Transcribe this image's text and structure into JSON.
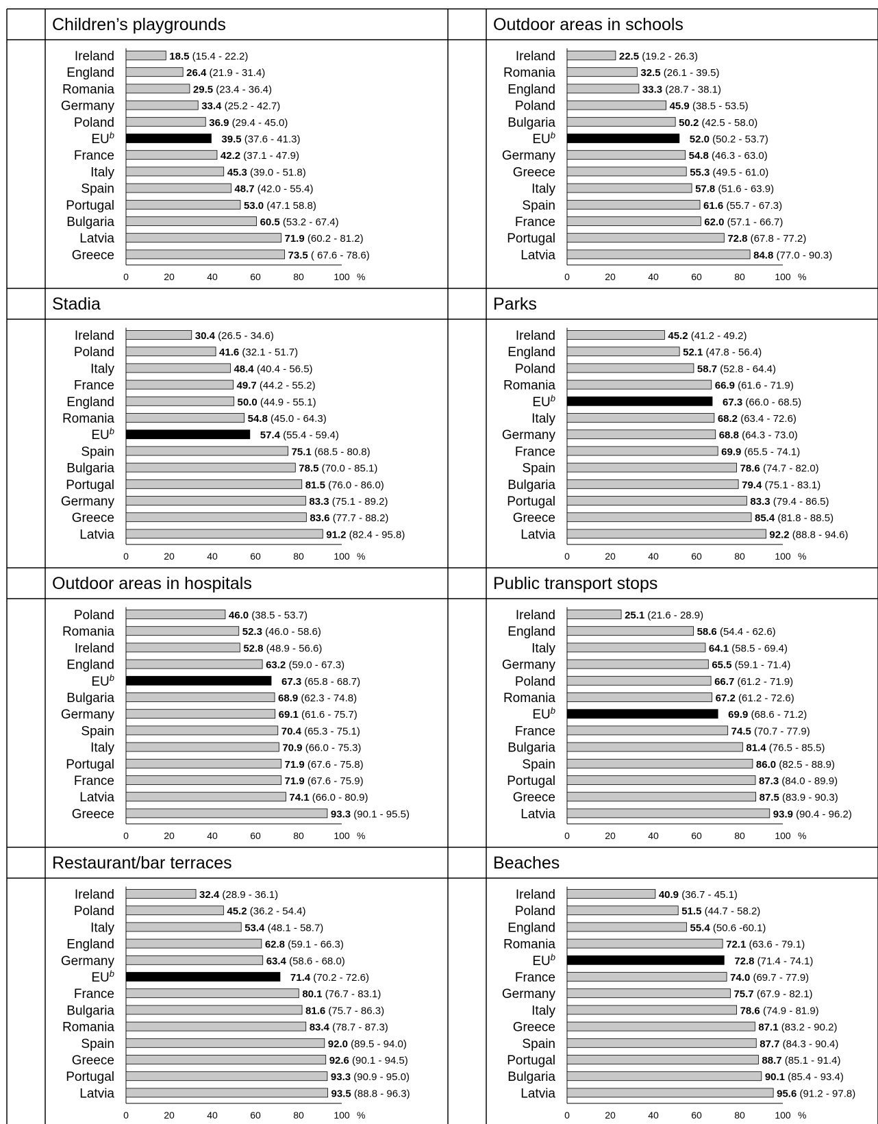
{
  "chart_data": [
    {
      "type": "bar",
      "title": "Children’s playgrounds",
      "categories": [
        "Ireland",
        "England",
        "Romania",
        "Germany",
        "Poland",
        "EU",
        "France",
        "Italy",
        "Spain",
        "Portugal",
        "Bulgaria",
        "Latvia",
        "Greece"
      ],
      "values": [
        18.5,
        26.4,
        29.5,
        33.4,
        36.9,
        39.5,
        42.2,
        45.3,
        48.7,
        53.0,
        60.5,
        71.9,
        73.5
      ],
      "intervals": [
        "(15.4 - 22.2)",
        "(21.9 - 31.4)",
        "(23.4 - 36.4)",
        "(25.2 - 42.7)",
        "(29.4 - 45.0)",
        "(37.6 - 41.3)",
        "(37.1 - 47.9)",
        "(39.0 - 51.8)",
        "(42.0 - 55.4)",
        "(47.1 58.8)",
        "(53.2 - 67.4)",
        "(60.2 - 81.2)",
        "( 67.6 - 78.6)"
      ],
      "highlight": "EU",
      "xlim": [
        0,
        100
      ],
      "xticks": [
        "0",
        "20",
        "40",
        "60",
        "80",
        "100"
      ],
      "unit": "%"
    },
    {
      "type": "bar",
      "title": "Outdoor areas in schools",
      "categories": [
        "Ireland",
        "Romania",
        "England",
        "Poland",
        "Bulgaria",
        "EU",
        "Germany",
        "Greece",
        "Italy",
        "Spain",
        "France",
        "Portugal",
        "Latvia"
      ],
      "values": [
        22.5,
        32.5,
        33.3,
        45.9,
        50.2,
        52.0,
        54.8,
        55.3,
        57.8,
        61.6,
        62.0,
        72.8,
        84.8
      ],
      "intervals": [
        "(19.2 - 26.3)",
        "(26.1 - 39.5)",
        "(28.7 - 38.1)",
        "(38.5 - 53.5)",
        "(42.5 - 58.0)",
        "(50.2 - 53.7)",
        "(46.3 - 63.0)",
        "(49.5 - 61.0)",
        "(51.6 - 63.9)",
        "(55.7 - 67.3)",
        "(57.1 - 66.7)",
        "(67.8 - 77.2)",
        "(77.0 - 90.3)"
      ],
      "highlight": "EU",
      "xlim": [
        0,
        100
      ],
      "xticks": [
        "0",
        "20",
        "40",
        "60",
        "80",
        "100"
      ],
      "unit": "%"
    },
    {
      "type": "bar",
      "title": "Stadia",
      "categories": [
        "Ireland",
        "Poland",
        "Italy",
        "France",
        "England",
        "Romania",
        "EU",
        "Spain",
        "Bulgaria",
        "Portugal",
        "Germany",
        "Greece",
        "Latvia"
      ],
      "values": [
        30.4,
        41.6,
        48.4,
        49.7,
        50.0,
        54.8,
        57.4,
        75.1,
        78.5,
        81.5,
        83.3,
        83.6,
        91.2
      ],
      "intervals": [
        "(26.5 - 34.6)",
        "(32.1 - 51.7)",
        "(40.4 - 56.5)",
        "(44.2 - 55.2)",
        "(44.9 - 55.1)",
        "(45.0 - 64.3)",
        "(55.4 - 59.4)",
        "(68.5 - 80.8)",
        "(70.0 - 85.1)",
        "(76.0 - 86.0)",
        "(75.1 - 89.2)",
        "(77.7 - 88.2)",
        "(82.4 - 95.8)"
      ],
      "highlight": "EU",
      "xlim": [
        0,
        100
      ],
      "xticks": [
        "0",
        "20",
        "40",
        "60",
        "80",
        "100"
      ],
      "unit": "%"
    },
    {
      "type": "bar",
      "title": "Parks",
      "categories": [
        "Ireland",
        "England",
        "Poland",
        "Romania",
        "EU",
        "Italy",
        "Germany",
        "France",
        "Spain",
        "Bulgaria",
        "Portugal",
        "Greece",
        "Latvia"
      ],
      "values": [
        45.2,
        52.1,
        58.7,
        66.9,
        67.3,
        68.2,
        68.8,
        69.9,
        78.6,
        79.4,
        83.3,
        85.4,
        92.2
      ],
      "intervals": [
        "(41.2 - 49.2)",
        "(47.8 - 56.4)",
        "(52.8 - 64.4)",
        "(61.6 - 71.9)",
        "(66.0 - 68.5)",
        "(63.4 - 72.6)",
        "(64.3 - 73.0)",
        "(65.5 - 74.1)",
        "(74.7 - 82.0)",
        "(75.1 - 83.1)",
        "(79.4 - 86.5)",
        "(81.8 - 88.5)",
        "(88.8 - 94.6)"
      ],
      "highlight": "EU",
      "xlim": [
        0,
        100
      ],
      "xticks": [
        "0",
        "20",
        "40",
        "60",
        "80",
        "100"
      ],
      "unit": "%"
    },
    {
      "type": "bar",
      "title": "Outdoor areas in hospitals",
      "categories": [
        "Poland",
        "Romania",
        "Ireland",
        "England",
        "EU",
        "Bulgaria",
        "Germany",
        "Spain",
        "Italy",
        "Portugal",
        "France",
        "Latvia",
        "Greece"
      ],
      "values": [
        46.0,
        52.3,
        52.8,
        63.2,
        67.3,
        68.9,
        69.1,
        70.4,
        70.9,
        71.9,
        71.9,
        74.1,
        93.3
      ],
      "intervals": [
        "(38.5 - 53.7)",
        "(46.0 - 58.6)",
        "(48.9 - 56.6)",
        "(59.0 - 67.3)",
        "(65.8 - 68.7)",
        "(62.3 - 74.8)",
        "(61.6 - 75.7)",
        "(65.3 - 75.1)",
        "(66.0 - 75.3)",
        "(67.6 - 75.8)",
        "(67.6 - 75.9)",
        "(66.0 - 80.9)",
        "(90.1 - 95.5)"
      ],
      "highlight": "EU",
      "xlim": [
        0,
        100
      ],
      "xticks": [
        "0",
        "20",
        "40",
        "60",
        "80",
        "100"
      ],
      "unit": "%"
    },
    {
      "type": "bar",
      "title": "Public transport stops",
      "categories": [
        "Ireland",
        "England",
        "Italy",
        "Germany",
        "Poland",
        "Romania",
        "EU",
        "France",
        "Bulgaria",
        "Spain",
        "Portugal",
        "Greece",
        "Latvia"
      ],
      "values": [
        25.1,
        58.6,
        64.1,
        65.5,
        66.7,
        67.2,
        69.9,
        74.5,
        81.4,
        86.0,
        87.3,
        87.5,
        93.9
      ],
      "intervals": [
        "(21.6 - 28.9)",
        "(54.4 - 62.6)",
        "(58.5 - 69.4)",
        "(59.1 - 71.4)",
        "(61.2 - 71.9)",
        "(61.2 - 72.6)",
        "(68.6 - 71.2)",
        "(70.7 - 77.9)",
        "(76.5 - 85.5)",
        "(82.5 - 88.9)",
        "(84.0 - 89.9)",
        "(83.9 - 90.3)",
        "(90.4 - 96.2)"
      ],
      "highlight": "EU",
      "xlim": [
        0,
        100
      ],
      "xticks": [
        "0",
        "20",
        "40",
        "60",
        "80",
        "100"
      ],
      "unit": "%"
    },
    {
      "type": "bar",
      "title": "Restaurant/bar terraces",
      "categories": [
        "Ireland",
        "Poland",
        "Italy",
        "England",
        "Germany",
        "EU",
        "France",
        "Bulgaria",
        "Romania",
        "Spain",
        "Greece",
        "Portugal",
        "Latvia"
      ],
      "values": [
        32.4,
        45.2,
        53.4,
        62.8,
        63.4,
        71.4,
        80.1,
        81.6,
        83.4,
        92.0,
        92.6,
        93.3,
        93.5
      ],
      "intervals": [
        "(28.9 - 36.1)",
        "(36.2 - 54.4)",
        "(48.1 - 58.7)",
        "(59.1 - 66.3)",
        "(58.6 - 68.0)",
        "(70.2 - 72.6)",
        "(76.7 - 83.1)",
        "(75.7 - 86.3)",
        "(78.7 - 87.3)",
        "(89.5 - 94.0)",
        "(90.1 - 94.5)",
        "(90.9 - 95.0)",
        "(88.8 - 96.3)"
      ],
      "highlight": "EU",
      "xlim": [
        0,
        100
      ],
      "xticks": [
        "0",
        "20",
        "40",
        "60",
        "80",
        "100"
      ],
      "unit": "%"
    },
    {
      "type": "bar",
      "title": "Beaches",
      "categories": [
        "Ireland",
        "Poland",
        "England",
        "Romania",
        "EU",
        "France",
        "Germany",
        "Italy",
        "Greece",
        "Spain",
        "Portugal",
        "Bulgaria",
        "Latvia"
      ],
      "values": [
        40.9,
        51.5,
        55.4,
        72.1,
        72.8,
        74.0,
        75.7,
        78.6,
        87.1,
        87.7,
        88.7,
        90.1,
        95.6
      ],
      "intervals": [
        "(36.7 - 45.1)",
        "(44.7 - 58.2)",
        "(50.6 -60.1)",
        "(63.6 - 79.1)",
        "(71.4 - 74.1)",
        "(69.7 - 77.9)",
        "(67.9 - 82.1)",
        "(74.9 - 81.9)",
        "(83.2 - 90.2)",
        "(84.3 - 90.4)",
        "(85.1 - 91.4)",
        "(85.4 - 93.4)",
        "(91.2 - 97.8)"
      ],
      "highlight": "EU",
      "xlim": [
        0,
        100
      ],
      "xticks": [
        "0",
        "20",
        "40",
        "60",
        "80",
        "100"
      ],
      "unit": "%"
    }
  ],
  "highlight_superscript": "b",
  "colors": {
    "bar": "#c8c8c8",
    "highlight": "#000000",
    "border": "#000000"
  }
}
